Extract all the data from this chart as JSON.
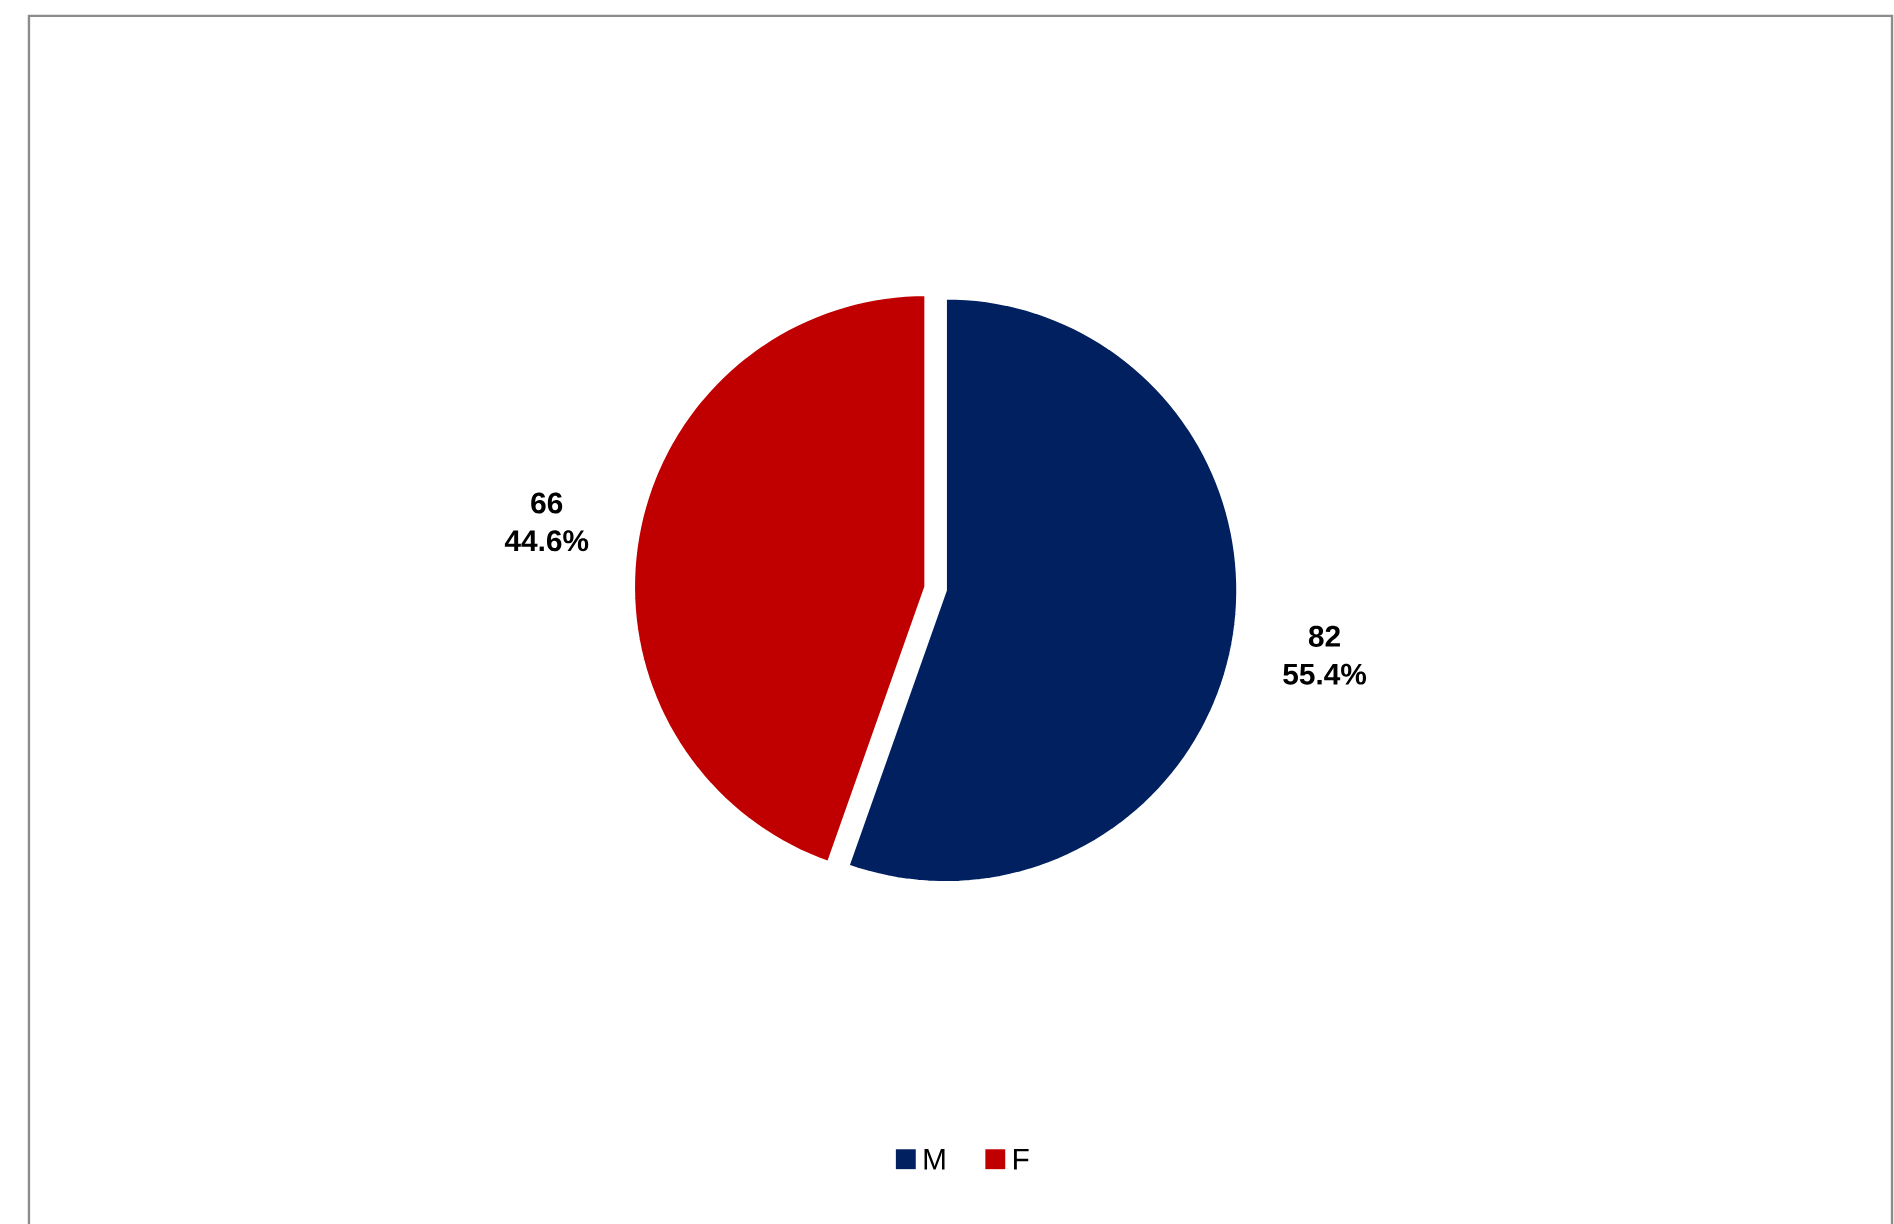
{
  "chart_data": {
    "type": "pie",
    "categories": [
      "M",
      "F"
    ],
    "values": [
      82,
      66
    ],
    "value_labels": [
      "82 55.4%",
      "66 44.6%"
    ],
    "colors": [
      "#002060",
      "#c00000"
    ],
    "legend": "bottom"
  }
}
